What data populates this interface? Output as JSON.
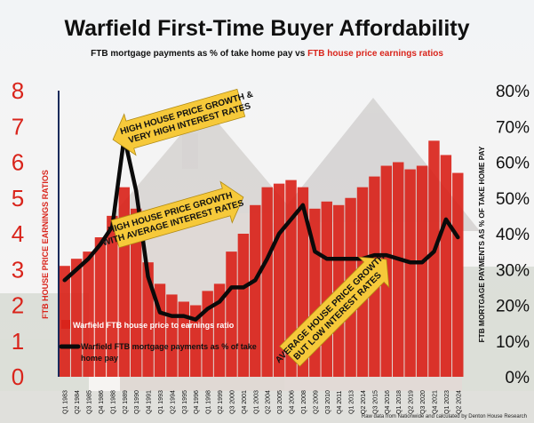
{
  "header": {
    "title": "Warfield First-Time Buyer Affordability",
    "subtitle_black": "FTB mortgage payments as % of take home pay",
    "subtitle_vs": " vs ",
    "subtitle_red": "FTB house price earnings ratios"
  },
  "source_note": "Raw data from Nationwide and calculated by Denton House Research",
  "colors": {
    "bar": "#d9241b",
    "line": "#0a0a0a",
    "arrow": "#f6c93a",
    "left_axis": "#d9241b"
  },
  "annotations": [
    {
      "id": "a1",
      "lines": [
        "HIGH HOUSE PRICE GROWTH &",
        "VERY HIGH INTEREST RATES"
      ]
    },
    {
      "id": "a2",
      "lines": [
        "HIGH HOUSE PRICE GROWTH",
        "WITH AVERAGE INTEREST RATES"
      ]
    },
    {
      "id": "a3",
      "lines": [
        "AVERAGE HOUSE PRICE GROWTH",
        "BUT LOW INTEREST RATES"
      ]
    }
  ],
  "chart_data": {
    "type": "bar+line",
    "title": "Warfield First-Time Buyer Affordability",
    "subtitle": "FTB mortgage payments as % of take home pay vs FTB house price earnings ratios",
    "categories": [
      "Q1 1983",
      "Q2 1984",
      "Q3 1985",
      "Q4 1986",
      "Q1 1988",
      "Q2 1989",
      "Q3 1990",
      "Q4 1991",
      "Q1 1993",
      "Q2 1994",
      "Q3 1995",
      "Q4 1996",
      "Q1 1998",
      "Q2 1999",
      "Q3 2000",
      "Q4 2001",
      "Q1 2003",
      "Q2 2004",
      "Q3 2005",
      "Q4 2006",
      "Q1 2008",
      "Q2 2009",
      "Q3 2010",
      "Q4 2011",
      "Q1 2013",
      "Q2 2014",
      "Q3 2015",
      "Q4 2016",
      "Q1 2018",
      "Q2 2019",
      "Q3 2020",
      "Q4 2021",
      "Q1 2023",
      "Q2 2024"
    ],
    "series": [
      {
        "name": "Warfield FTB house price to earnings ratio",
        "type": "bar",
        "axis": "left",
        "values": [
          3.1,
          3.3,
          3.5,
          3.9,
          4.5,
          5.3,
          4.7,
          3.2,
          2.6,
          2.3,
          2.1,
          2.0,
          2.4,
          2.6,
          3.5,
          4.0,
          4.8,
          5.3,
          5.4,
          5.5,
          5.3,
          4.7,
          4.9,
          4.8,
          5.0,
          5.3,
          5.6,
          5.9,
          6.0,
          5.8,
          5.9,
          6.6,
          6.2,
          5.7
        ]
      },
      {
        "name": "Warfield FTB mortgage payments as % of take home pay",
        "type": "line",
        "axis": "right",
        "values": [
          27,
          30,
          33,
          37,
          42,
          67,
          52,
          28,
          18,
          17,
          17,
          16,
          19,
          21,
          25,
          25,
          27,
          33,
          40,
          44,
          48,
          35,
          33,
          33,
          33,
          33,
          34,
          34,
          33,
          32,
          32,
          35,
          44,
          39
        ]
      }
    ],
    "left_axis": {
      "label": "FTB HOUSE PRICE EARNINGS RATIOS",
      "min": 0,
      "max": 8,
      "ticks": [
        "0",
        "1",
        "2",
        "3",
        "4",
        "5",
        "6",
        "7",
        "8"
      ]
    },
    "right_axis": {
      "label": "FTB MORTGAGE PAYMENTS AS % OF TAKE HOME PAY",
      "min": 0,
      "max": 80,
      "ticks": [
        "0%",
        "10%",
        "20%",
        "30%",
        "40%",
        "50%",
        "60%",
        "70%",
        "80%"
      ]
    },
    "legend": [
      {
        "label": "Warfield FTB house price to earnings ratio",
        "kind": "bar"
      },
      {
        "label_lines": [
          "Warfield FTB mortgage payments as % of take",
          "home pay"
        ],
        "kind": "line"
      }
    ],
    "legend_position": "bottom-left"
  }
}
